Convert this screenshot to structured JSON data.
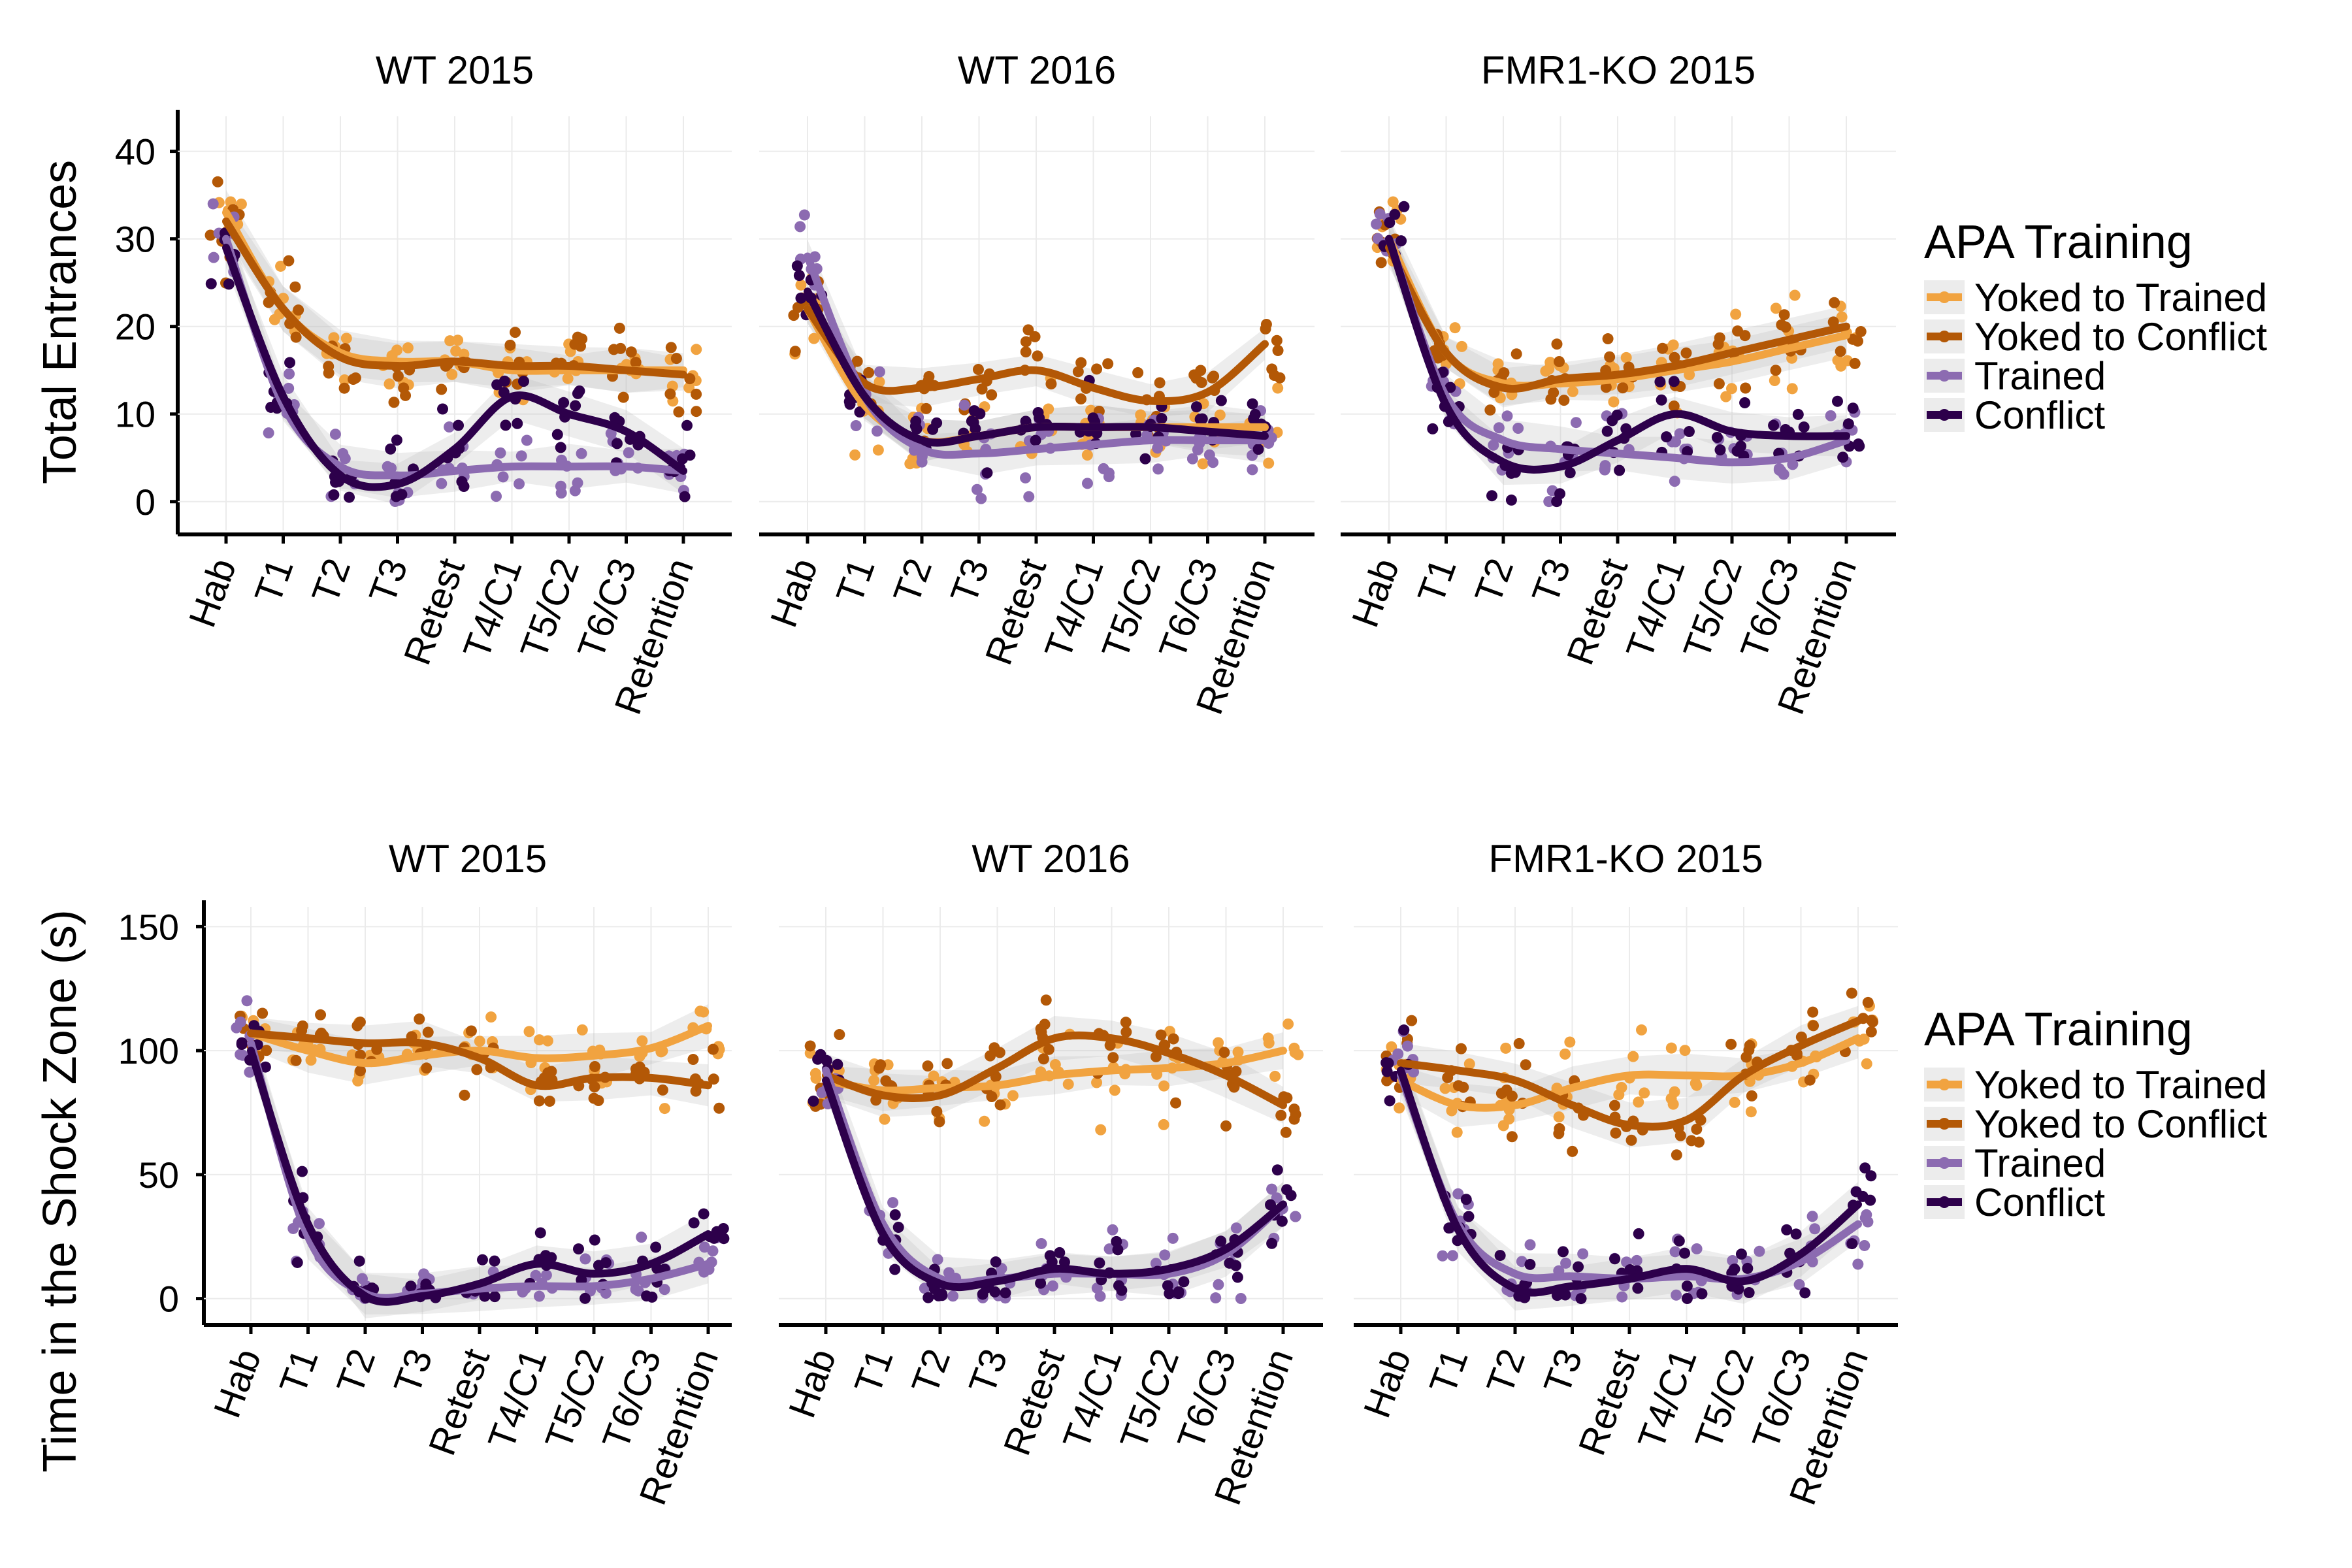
{
  "chart_data": {
    "type": "scatter",
    "x_categories": [
      "Hab",
      "T1",
      "T2",
      "T3",
      "Retest",
      "T4/C1",
      "T5/C2",
      "T6/C3",
      "Retention"
    ],
    "legend": {
      "title": "APA Training",
      "placement": "right",
      "entries": [
        {
          "name": "Yoked to Trained",
          "color": "#F1A340"
        },
        {
          "name": "Yoked to Conflict",
          "color": "#B35806"
        },
        {
          "name": "Trained",
          "color": "#8C6BB1"
        },
        {
          "name": "Conflict",
          "color": "#2D004B"
        }
      ]
    },
    "rows": [
      {
        "ylabel": "Total Entrances",
        "ylim": [
          -3,
          44
        ],
        "yticks": [
          0,
          10,
          20,
          30,
          40
        ],
        "panels": [
          {
            "title": "WT 2015",
            "series": [
              {
                "name": "Yoked to Trained",
                "smooth": [
                  33,
                  22,
                  17,
                  16,
                  16,
                  15,
                  15,
                  15,
                  15
                ]
              },
              {
                "name": "Yoked to Conflict",
                "smooth": [
                  32,
                  22,
                  16.5,
                  15.5,
                  16,
                  15.5,
                  15.5,
                  15,
                  14.5
                ]
              },
              {
                "name": "Trained",
                "smooth": [
                  30,
                  11,
                  4,
                  3,
                  3.5,
                  4,
                  4,
                  4,
                  3.5
                ]
              },
              {
                "name": "Conflict",
                "smooth": [
                  29,
                  12,
                  3,
                  2,
                  6,
                  12,
                  10,
                  8,
                  3.5
                ]
              }
            ]
          },
          {
            "title": "WT 2016",
            "series": [
              {
                "name": "Yoked to Trained",
                "smooth": [
                  22,
                  11,
                  7,
                  7.5,
                  8.5,
                  8.5,
                  8.5,
                  8.5,
                  8.5
                ]
              },
              {
                "name": "Yoked to Conflict",
                "smooth": [
                  22,
                  13.5,
                  13,
                  14,
                  15,
                  13,
                  11.5,
                  12.5,
                  18
                ]
              },
              {
                "name": "Trained",
                "smooth": [
                  28,
                  12,
                  6,
                  5.5,
                  6,
                  6.5,
                  7,
                  7,
                  7
                ]
              },
              {
                "name": "Conflict",
                "smooth": [
                  24,
                  12,
                  7,
                  7.5,
                  8.5,
                  8.5,
                  8.5,
                  8,
                  7.5
                ]
              }
            ]
          },
          {
            "title": "FMR1-KO 2015",
            "series": [
              {
                "name": "Yoked to Trained",
                "smooth": [
                  30,
                  17,
                  13.5,
                  13.5,
                  14,
                  15,
                  16,
                  17.5,
                  19
                ]
              },
              {
                "name": "Yoked to Conflict",
                "smooth": [
                  29,
                  17,
                  13,
                  14,
                  14.5,
                  15.5,
                  17,
                  18.5,
                  20
                ]
              },
              {
                "name": "Trained",
                "smooth": [
                  30,
                  12,
                  7,
                  6,
                  5.5,
                  5,
                  4.5,
                  5,
                  7
                ]
              },
              {
                "name": "Conflict",
                "smooth": [
                  30,
                  11,
                  4.5,
                  4,
                  7,
                  10,
                  8,
                  7.5,
                  7.5
                ]
              }
            ]
          }
        ]
      },
      {
        "ylabel": "Time in the Shock Zone (s)",
        "ylim": [
          -8,
          158
        ],
        "yticks": [
          0,
          50,
          100,
          150
        ],
        "panels": [
          {
            "title": "WT 2015",
            "series": [
              {
                "name": "Yoked to Trained",
                "smooth": [
                  107,
                  100,
                  95,
                  98,
                  100,
                  97,
                  98,
                  101,
                  110
                ]
              },
              {
                "name": "Yoked to Conflict",
                "smooth": [
                  107,
                  105,
                  103,
                  103,
                  97,
                  86,
                  89,
                  89,
                  86
                ]
              },
              {
                "name": "Trained",
                "smooth": [
                  103,
                  25,
                  2,
                  2,
                  4,
                  5,
                  5,
                  8,
                  14
                ]
              },
              {
                "name": "Conflict",
                "smooth": [
                  100,
                  30,
                  1,
                  1,
                  6,
                  14,
                  10,
                  14,
                  26
                ]
              }
            ]
          },
          {
            "title": "WT 2016",
            "series": [
              {
                "name": "Yoked to Trained",
                "smooth": [
                  88,
                  84,
                  85,
                  86,
                  90,
                  92,
                  93,
                  95,
                  100
                ]
              },
              {
                "name": "Yoked to Conflict",
                "smooth": [
                  90,
                  82,
                  82,
                  93,
                  105,
                  105,
                  99,
                  90,
                  78
                ]
              },
              {
                "name": "Trained",
                "smooth": [
                  92,
                  30,
                  8,
                  8,
                  10,
                  10,
                  10,
                  18,
                  38
                ]
              },
              {
                "name": "Conflict",
                "smooth": [
                  88,
                  26,
                  6,
                  7,
                  12,
                  10,
                  12,
                  20,
                  38
                ]
              }
            ]
          },
          {
            "title": "FMR1-KO 2015",
            "series": [
              {
                "name": "Yoked to Trained",
                "smooth": [
                  88,
                  78,
                  78,
                  85,
                  90,
                  90,
                  90,
                  95,
                  105
                ]
              },
              {
                "name": "Yoked to Conflict",
                "smooth": [
                  95,
                  92,
                  88,
                  78,
                  70,
                  72,
                  90,
                  102,
                  112
                ]
              },
              {
                "name": "Trained",
                "smooth": [
                  90,
                  30,
                  10,
                  9,
                  8,
                  9,
                  8,
                  15,
                  30
                ]
              },
              {
                "name": "Conflict",
                "smooth": [
                  92,
                  28,
                  4,
                  5,
                  8,
                  12,
                  7,
                  18,
                  38
                ]
              }
            ]
          }
        ]
      }
    ]
  }
}
